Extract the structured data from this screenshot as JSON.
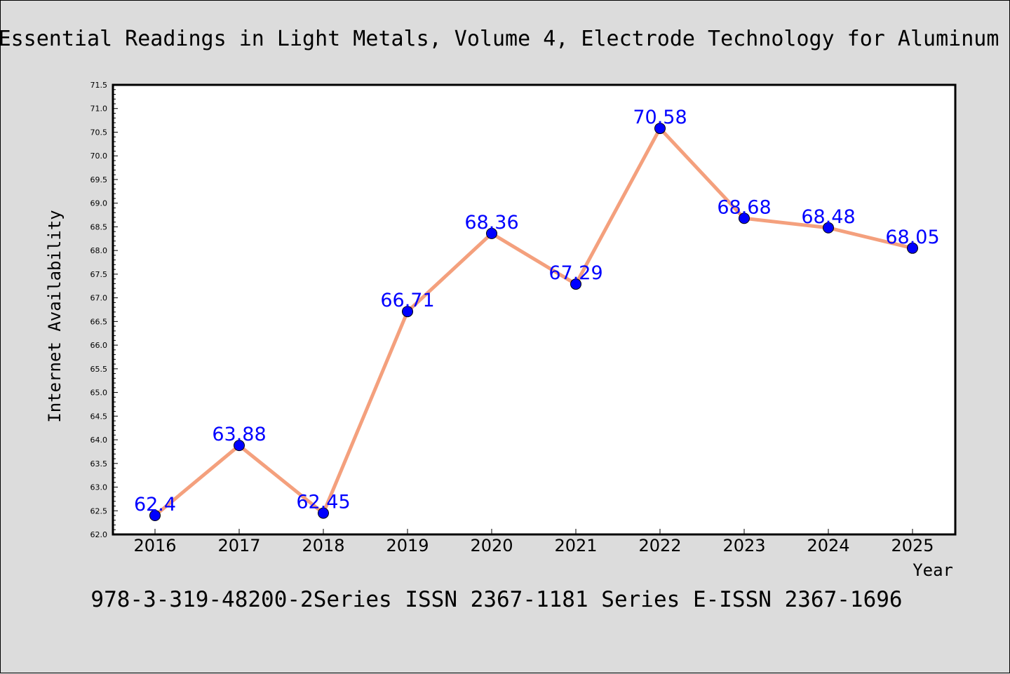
{
  "title": "Essential Readings in Light Metals, Volume 4, Electrode Technology for Aluminum",
  "footer": "978-3-319-48200-2Series ISSN 2367-1181 Series E-ISSN 2367-1696",
  "colors": {
    "background": "#dcdcdc",
    "plot_area": "#ffffff",
    "line": "#f4a07d",
    "marker": "#0000ff",
    "data_label": "#0000ff"
  },
  "chart_data": {
    "type": "line",
    "title": "Essential Readings in Light Metals, Volume 4, Electrode Technology for Aluminum",
    "xlabel": "Year",
    "ylabel": "Internet Availability",
    "x": [
      "2016",
      "2017",
      "2018",
      "2019",
      "2020",
      "2021",
      "2022",
      "2023",
      "2024",
      "2025"
    ],
    "series": [
      {
        "values": [
          62.4,
          63.88,
          62.45,
          66.71,
          68.36,
          67.29,
          70.58,
          68.68,
          68.48,
          68.05
        ]
      }
    ],
    "data_labels": [
      "62.4",
      "63.88",
      "62.45",
      "66.71",
      "68.36",
      "67.29",
      "70.58",
      "68.68",
      "68.48",
      "68.05"
    ],
    "ylim": [
      62.0,
      71.5
    ],
    "yticks": [
      "62.0",
      "62.5",
      "63.0",
      "63.5",
      "64.0",
      "64.5",
      "65.0",
      "65.5",
      "66.0",
      "66.5",
      "67.0",
      "67.5",
      "68.0",
      "68.5",
      "69.0",
      "69.5",
      "70.0",
      "70.5",
      "71.0",
      "71.5"
    ],
    "grid": false,
    "legend": "none"
  }
}
